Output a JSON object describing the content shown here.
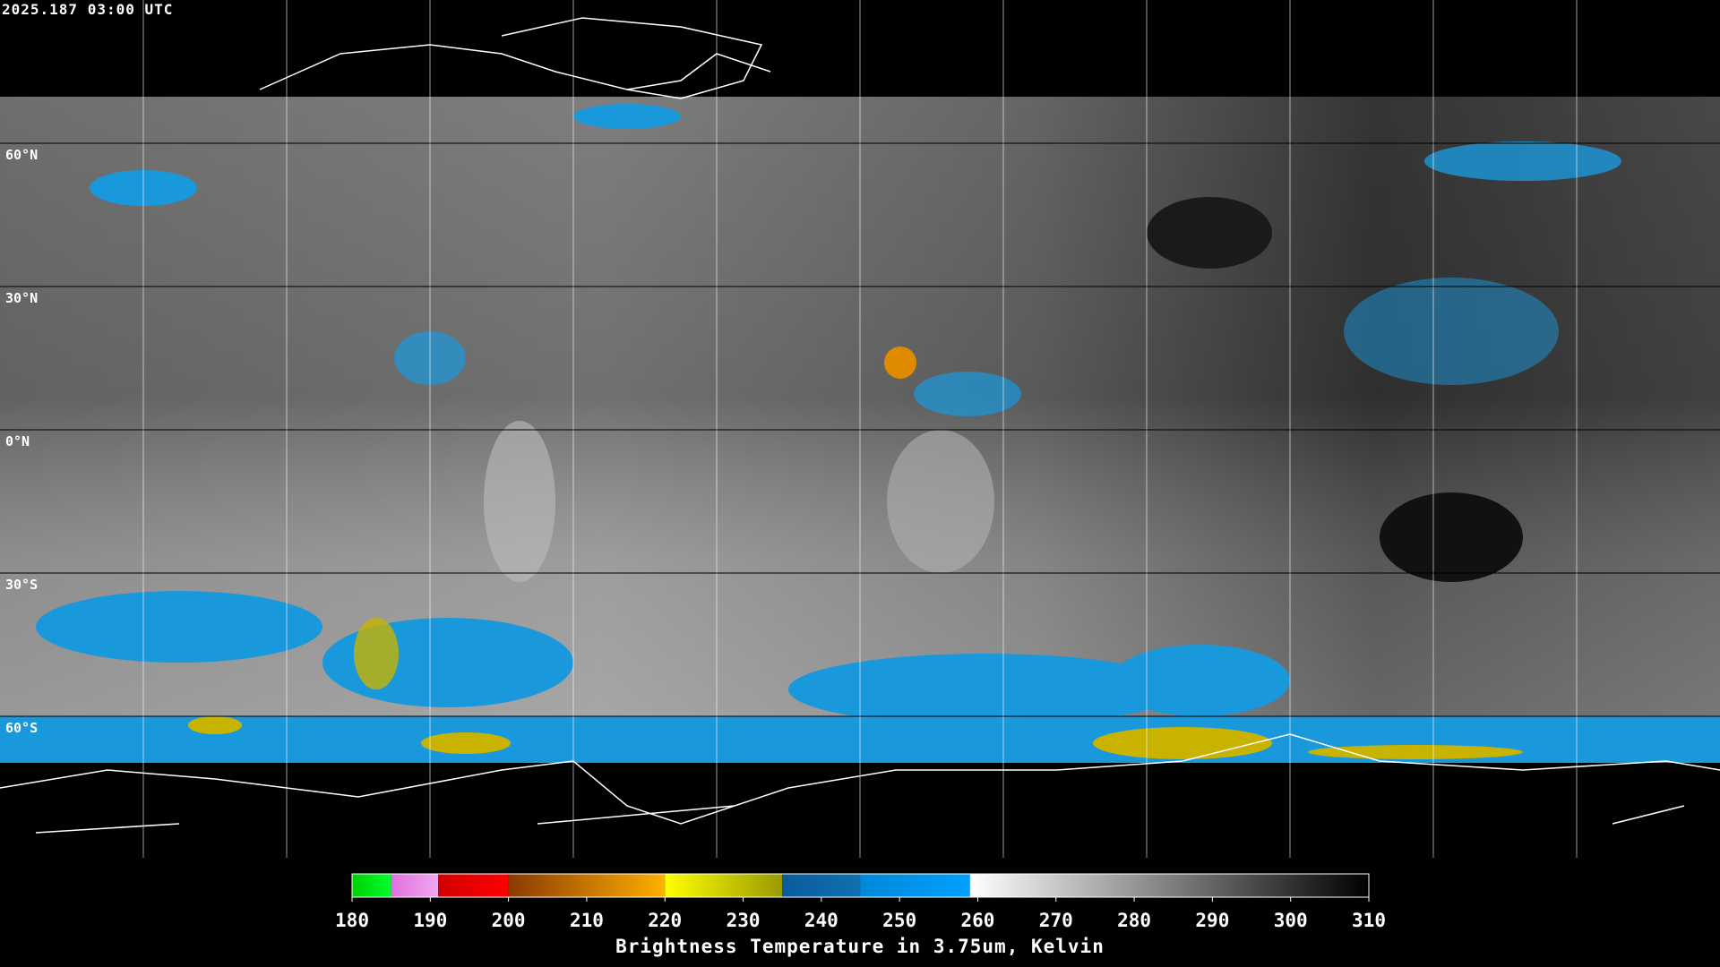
{
  "header": {
    "timestamp": "2025.187 03:00 UTC"
  },
  "map": {
    "lat_labels": [
      "60°N",
      "30°N",
      "0°N",
      "30°S",
      "60°S"
    ]
  },
  "colorbar": {
    "range": [
      180,
      310
    ],
    "ticks": [
      180,
      190,
      200,
      210,
      220,
      230,
      240,
      250,
      260,
      270,
      280,
      290,
      300,
      310
    ],
    "segments": [
      {
        "from": 180,
        "to": 185,
        "colors": [
          "#00d000",
          "#00ff30"
        ]
      },
      {
        "from": 185,
        "to": 191,
        "colors": [
          "#e070e0",
          "#f0a8f0"
        ]
      },
      {
        "from": 191,
        "to": 200,
        "colors": [
          "#d00000",
          "#ff0000"
        ]
      },
      {
        "from": 200,
        "to": 220,
        "colors": [
          "#8a3a00",
          "#ffb000"
        ]
      },
      {
        "from": 220,
        "to": 235,
        "colors": [
          "#ffff00",
          "#9a9a00"
        ]
      },
      {
        "from": 235,
        "to": 245,
        "colors": [
          "#0a5c9c",
          "#1070b0"
        ]
      },
      {
        "from": 245,
        "to": 259,
        "colors": [
          "#0088d8",
          "#00a0ff"
        ]
      },
      {
        "from": 259,
        "to": 310,
        "colors": [
          "#ffffff",
          "#000000"
        ]
      }
    ],
    "title": "Brightness Temperature in 3.75um, Kelvin"
  }
}
